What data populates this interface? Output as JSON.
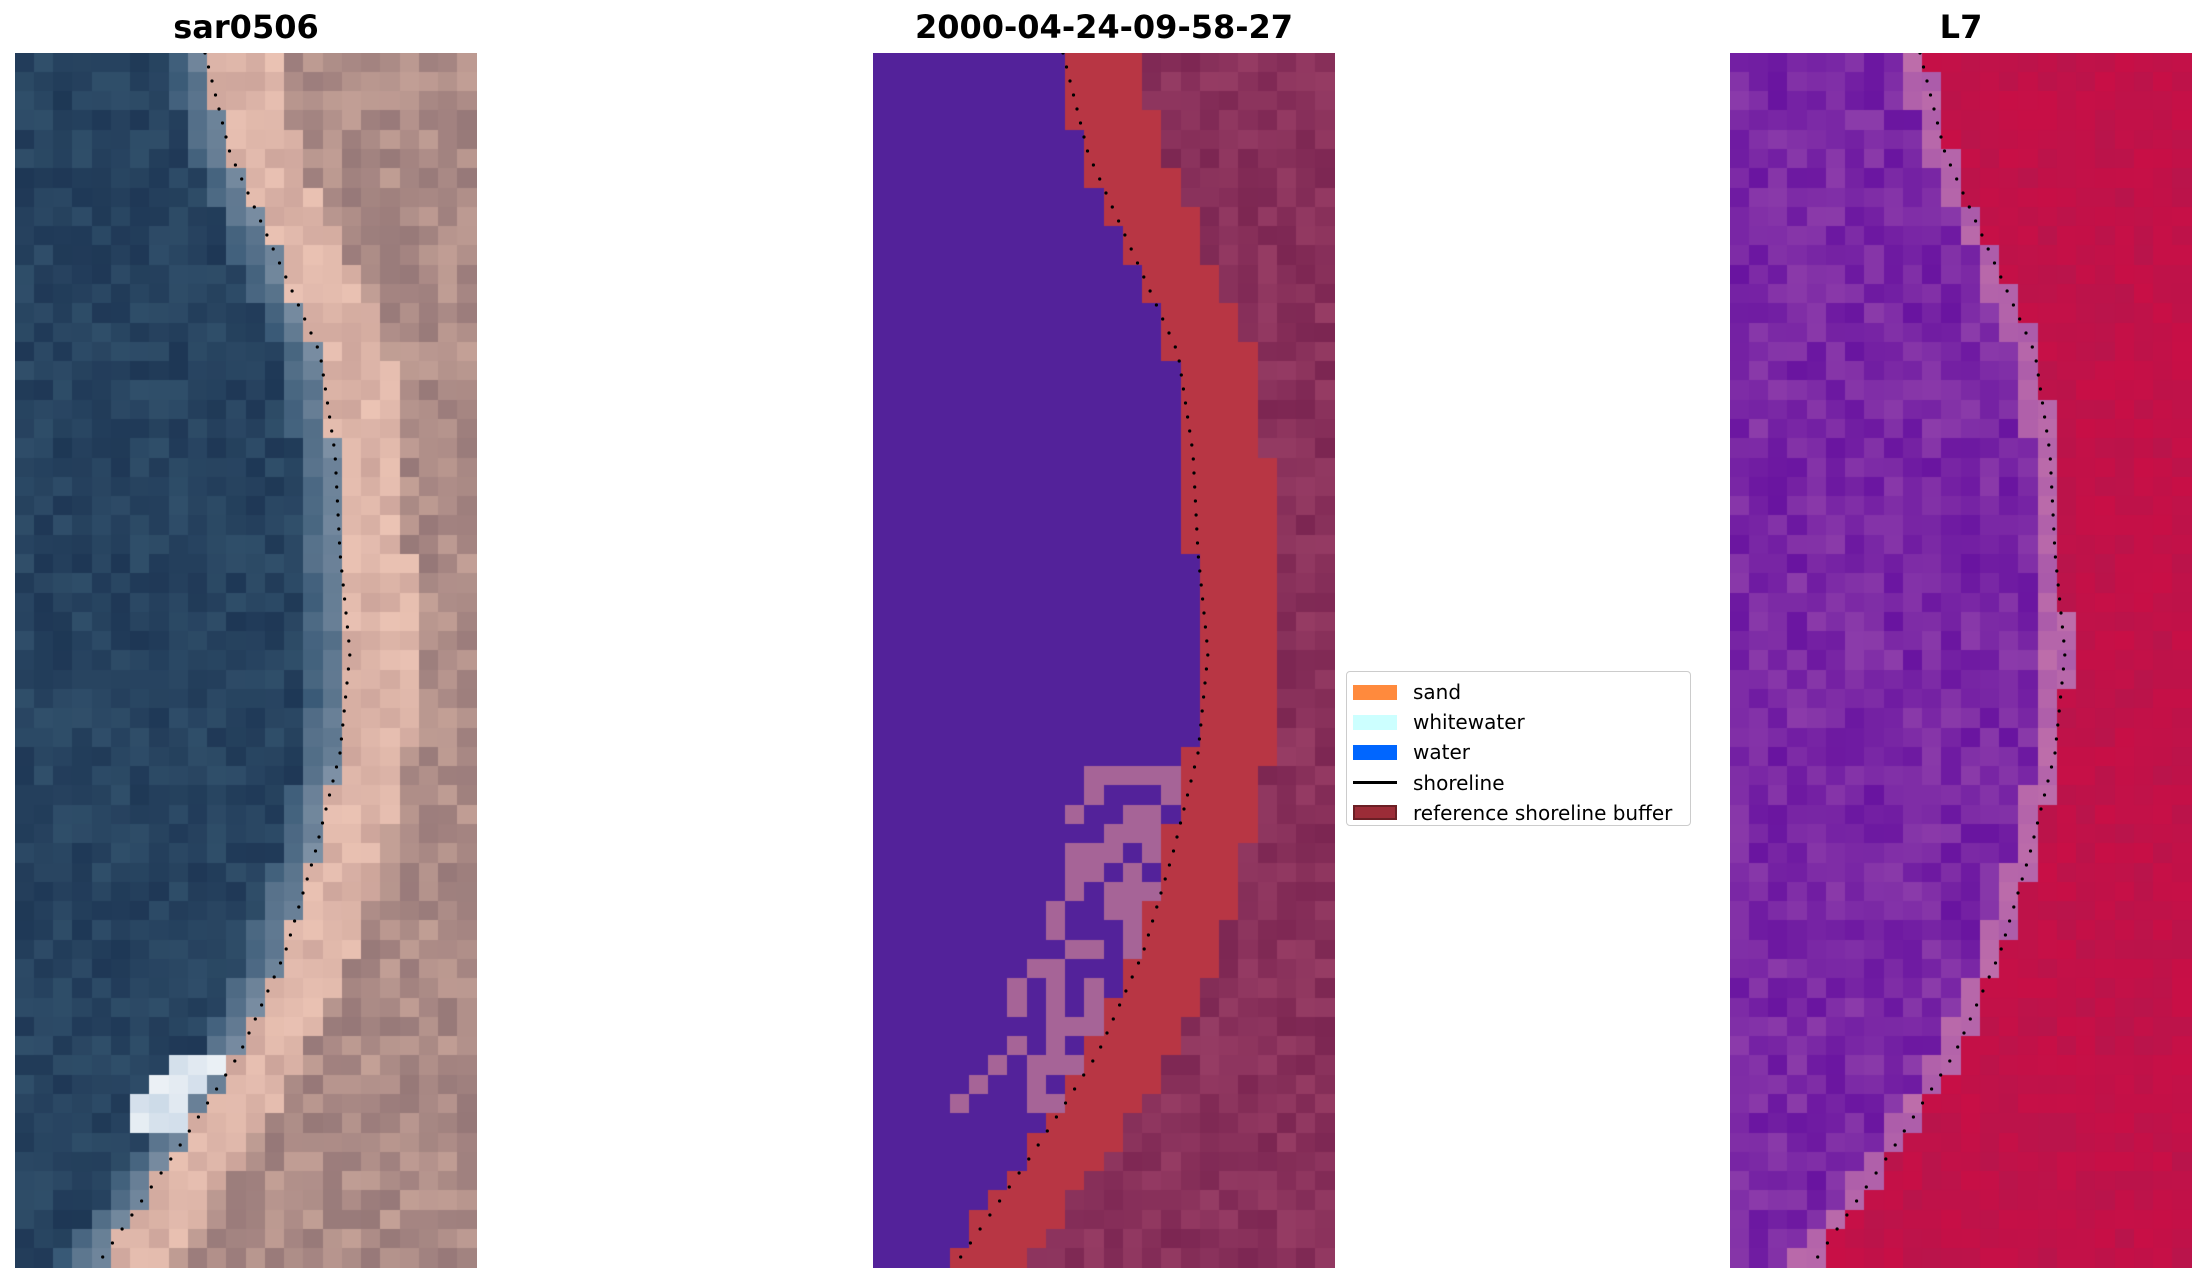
{
  "panels": [
    {
      "title": "sar0506",
      "kind": "rgb"
    },
    {
      "title": "2000-04-24-09-58-27",
      "kind": "classified"
    },
    {
      "title": "L7",
      "kind": "index"
    }
  ],
  "legend": {
    "items": [
      {
        "label": "sand",
        "color": "#ff8a3d",
        "type": "patch"
      },
      {
        "label": "whitewater",
        "color": "#ccffff",
        "type": "patch"
      },
      {
        "label": "water",
        "color": "#0066ff",
        "type": "patch"
      },
      {
        "label": "shoreline",
        "color": "#000000",
        "type": "line"
      },
      {
        "label": "reference shoreline buffer",
        "color": "#9b2c37",
        "edge": "#6b1f25",
        "type": "patch"
      }
    ]
  },
  "colors": {
    "water_class": "#53229a",
    "buffer": "#b83644",
    "whitewater_class": "#a66497",
    "land_class": "#7a2552",
    "index_low": "#6a16a3",
    "index_high": "#c6063a"
  }
}
